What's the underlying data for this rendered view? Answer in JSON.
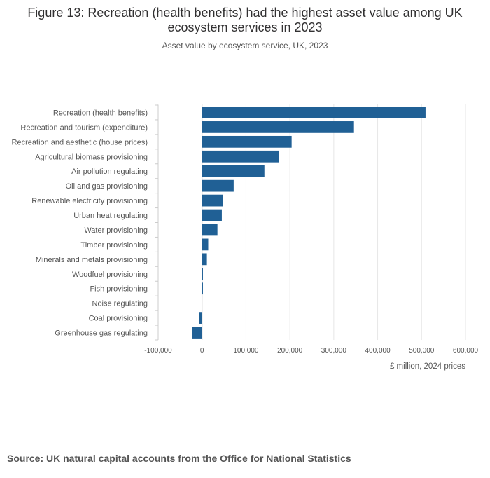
{
  "chart_data": {
    "type": "bar",
    "orientation": "horizontal",
    "title": "Figure 13: Recreation (health benefits) had the highest asset value among UK ecosystem services in 2023",
    "subtitle": "Asset value by ecosystem service, UK, 2023",
    "xlabel": "£ million, 2024 prices",
    "ylabel": "",
    "xlim": [
      -100000,
      600000
    ],
    "xticks": [
      -100000,
      0,
      100000,
      200000,
      300000,
      400000,
      500000,
      600000
    ],
    "xtick_labels": [
      "-100,000",
      "0",
      "100,000",
      "200,000",
      "300,000",
      "400,000",
      "500,000",
      "600,000"
    ],
    "grid": true,
    "color": "#206095",
    "categories": [
      "Recreation (health benefits)",
      "Recreation and tourism (expenditure)",
      "Recreation and aesthetic (house prices)",
      "Agricultural biomass provisioning",
      "Air pollution regulating",
      "Oil and gas provisioning",
      "Renewable electricity provisioning",
      "Urban heat regulating",
      "Water provisioning",
      "Timber provisioning",
      "Minerals and metals provisioning",
      "Woodfuel provisioning",
      "Fish provisioning",
      "Noise regulating",
      "Coal provisioning",
      "Greenhouse gas regulating"
    ],
    "values": [
      509000,
      346000,
      204000,
      175000,
      142000,
      72000,
      48000,
      45000,
      35000,
      14000,
      11000,
      2000,
      2000,
      0,
      -6000,
      -23000
    ]
  },
  "source": "Source: UK natural capital accounts from the Office for National Statistics"
}
